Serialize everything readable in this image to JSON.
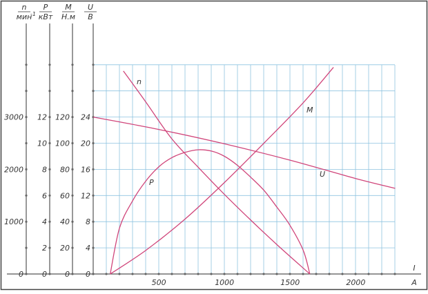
{
  "chart_data": {
    "type": "line",
    "colors": {
      "grid": "#8ec3e0",
      "curve": "#d0457a",
      "axis": "#555555",
      "frame": "#444444"
    },
    "x_axis": {
      "label_top": "I",
      "label_bottom": "A",
      "range": [
        0,
        2400
      ],
      "ticks": [
        500,
        1000,
        1500,
        2000
      ],
      "tick_labels": [
        "500",
        "1000",
        "1500",
        "2000"
      ]
    },
    "y_axes": [
      {
        "key": "n",
        "numerator": "n",
        "denominator": "мин",
        "unit_suffix": "-1",
        "range": [
          0,
          4000
        ],
        "ticks": [
          0,
          1000,
          2000,
          3000
        ],
        "tick_labels": [
          "0",
          "1000",
          "2000",
          "3000"
        ]
      },
      {
        "key": "P",
        "numerator": "P",
        "denominator": "кВт",
        "range": [
          0,
          16
        ],
        "ticks": [
          0,
          2,
          4,
          6,
          8,
          10,
          12
        ],
        "tick_labels": [
          "0",
          "2",
          "4",
          "6",
          "8",
          "10",
          "12"
        ]
      },
      {
        "key": "M",
        "numerator": "M",
        "denominator": "Н.м",
        "range": [
          0,
          160
        ],
        "ticks": [
          0,
          20,
          40,
          60,
          80,
          100,
          120
        ],
        "tick_labels": [
          "0",
          "20",
          "40",
          "60",
          "80",
          "100",
          "120"
        ]
      },
      {
        "key": "U",
        "numerator": "U",
        "denominator": "В",
        "range": [
          0,
          32
        ],
        "ticks": [
          0,
          4,
          8,
          12,
          16,
          20,
          24
        ],
        "tick_labels": [
          "0",
          "4",
          "8",
          "12",
          "16",
          "20",
          "24"
        ]
      }
    ],
    "series": [
      {
        "name": "n",
        "axis": "n",
        "x": [
          230,
          400,
          600,
          800,
          1000,
          1200,
          1400,
          1650
        ],
        "y": [
          3880,
          3290,
          2580,
          2040,
          1520,
          1030,
          560,
          0
        ]
      },
      {
        "name": "P",
        "axis": "P",
        "x": [
          130,
          200,
          300,
          400,
          500,
          600,
          700,
          800,
          900,
          1000,
          1100,
          1200,
          1300,
          1400,
          1500,
          1600,
          1650
        ],
        "y": [
          0,
          3.5,
          5.6,
          7.1,
          8.2,
          8.9,
          9.3,
          9.5,
          9.4,
          9.0,
          8.3,
          7.4,
          6.4,
          5.1,
          3.7,
          1.8,
          0
        ]
      },
      {
        "name": "M",
        "axis": "M",
        "x": [
          130,
          400,
          700,
          1000,
          1300,
          1600,
          1830
        ],
        "y": [
          0,
          18,
          42,
          70,
          100,
          131,
          158
        ]
      },
      {
        "name": "U",
        "axis": "U",
        "x": [
          0,
          500,
          1000,
          1500,
          2000,
          2300
        ],
        "y": [
          24,
          22.1,
          19.9,
          17.4,
          14.6,
          13.1
        ]
      }
    ]
  }
}
